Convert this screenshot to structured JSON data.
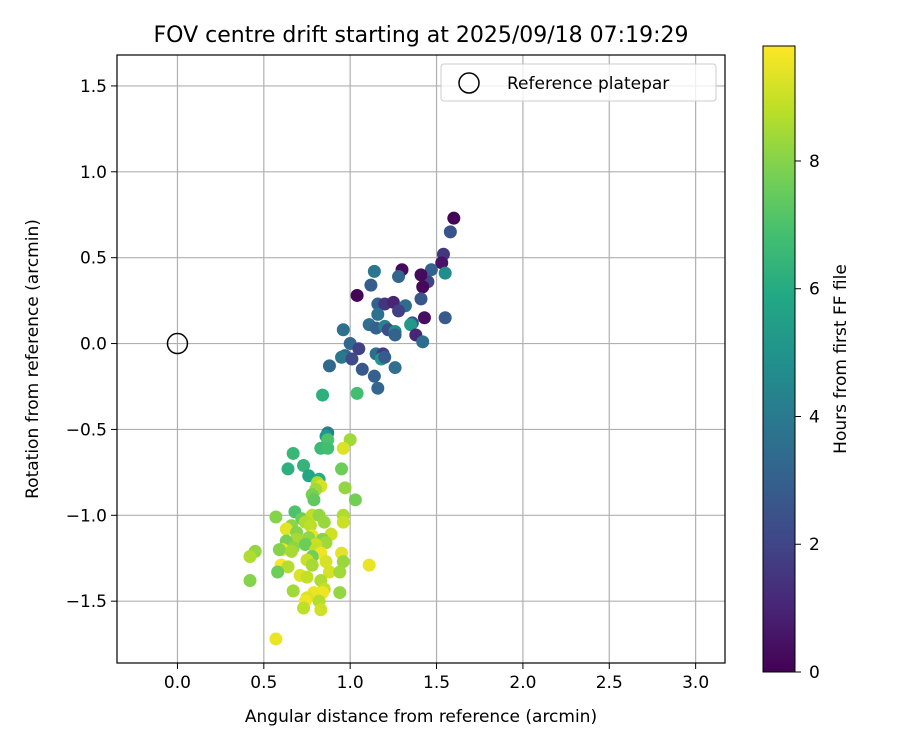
{
  "chart_data": {
    "type": "scatter",
    "title": "FOV centre drift starting at 2025/09/18 07:19:29",
    "xlabel": "Angular distance from reference (arcmin)",
    "ylabel": "Rotation from reference (arcmin)",
    "xlim": [
      -0.35,
      3.17
    ],
    "ylim": [
      -1.86,
      1.68
    ],
    "x_ticks": [
      0.0,
      0.5,
      1.0,
      1.5,
      2.0,
      2.5,
      3.0
    ],
    "y_ticks": [
      -1.5,
      -1.0,
      -0.5,
      0.0,
      0.5,
      1.0,
      1.5
    ],
    "grid": true,
    "legend": {
      "position": "top-right",
      "entries": [
        "Reference platepar"
      ]
    },
    "reference_point": {
      "x": 0.0,
      "y": 0.0
    },
    "colorbar": {
      "label": "Hours from first FF file",
      "range": [
        0,
        9.8
      ],
      "ticks": [
        0,
        2,
        4,
        6,
        8
      ],
      "colormap": "viridis"
    },
    "points": [
      {
        "x": 1.6,
        "y": 0.73,
        "c": 0.1
      },
      {
        "x": 1.58,
        "y": 0.65,
        "c": 2.5
      },
      {
        "x": 1.54,
        "y": 0.52,
        "c": 1.5
      },
      {
        "x": 1.53,
        "y": 0.47,
        "c": 0.5
      },
      {
        "x": 1.55,
        "y": 0.41,
        "c": 4.8
      },
      {
        "x": 1.47,
        "y": 0.43,
        "c": 3.0
      },
      {
        "x": 1.45,
        "y": 0.36,
        "c": 2.0
      },
      {
        "x": 1.41,
        "y": 0.4,
        "c": 0.3
      },
      {
        "x": 1.42,
        "y": 0.33,
        "c": 0.2
      },
      {
        "x": 1.41,
        "y": 0.26,
        "c": 2.6
      },
      {
        "x": 1.3,
        "y": 0.43,
        "c": 0.3
      },
      {
        "x": 1.28,
        "y": 0.39,
        "c": 3.2
      },
      {
        "x": 1.14,
        "y": 0.42,
        "c": 3.8
      },
      {
        "x": 1.12,
        "y": 0.34,
        "c": 2.9
      },
      {
        "x": 1.04,
        "y": 0.28,
        "c": 0.1
      },
      {
        "x": 1.16,
        "y": 0.23,
        "c": 3.1
      },
      {
        "x": 1.2,
        "y": 0.23,
        "c": 1.5
      },
      {
        "x": 1.25,
        "y": 0.24,
        "c": 1.0
      },
      {
        "x": 1.32,
        "y": 0.22,
        "c": 3.5
      },
      {
        "x": 1.28,
        "y": 0.19,
        "c": 1.8
      },
      {
        "x": 1.16,
        "y": 0.17,
        "c": 3.7
      },
      {
        "x": 1.55,
        "y": 0.15,
        "c": 2.8
      },
      {
        "x": 1.43,
        "y": 0.15,
        "c": 0.4
      },
      {
        "x": 1.36,
        "y": 0.12,
        "c": 2.5
      },
      {
        "x": 1.35,
        "y": 0.11,
        "c": 5.3
      },
      {
        "x": 1.11,
        "y": 0.11,
        "c": 3.6
      },
      {
        "x": 1.15,
        "y": 0.09,
        "c": 3.0
      },
      {
        "x": 1.2,
        "y": 0.1,
        "c": 4.3
      },
      {
        "x": 1.22,
        "y": 0.08,
        "c": 2.3
      },
      {
        "x": 1.26,
        "y": 0.07,
        "c": 4.6
      },
      {
        "x": 1.26,
        "y": 0.05,
        "c": 3.1
      },
      {
        "x": 1.38,
        "y": 0.05,
        "c": 1.0
      },
      {
        "x": 0.96,
        "y": 0.08,
        "c": 3.6
      },
      {
        "x": 1.42,
        "y": 0.01,
        "c": 3.5
      },
      {
        "x": 1.0,
        "y": 0.0,
        "c": 3.3
      },
      {
        "x": 1.05,
        "y": -0.03,
        "c": 1.9
      },
      {
        "x": 0.97,
        "y": -0.07,
        "c": 3.2
      },
      {
        "x": 0.95,
        "y": -0.08,
        "c": 3.9
      },
      {
        "x": 1.01,
        "y": -0.09,
        "c": 2.2
      },
      {
        "x": 1.15,
        "y": -0.06,
        "c": 3.5
      },
      {
        "x": 1.19,
        "y": -0.06,
        "c": 1.7
      },
      {
        "x": 1.18,
        "y": -0.09,
        "c": 5.2
      },
      {
        "x": 1.2,
        "y": -0.08,
        "c": 2.8
      },
      {
        "x": 0.88,
        "y": -0.13,
        "c": 3.3
      },
      {
        "x": 1.07,
        "y": -0.15,
        "c": 2.7
      },
      {
        "x": 1.26,
        "y": -0.14,
        "c": 3.6
      },
      {
        "x": 1.14,
        "y": -0.19,
        "c": 3.0
      },
      {
        "x": 1.16,
        "y": -0.26,
        "c": 3.2
      },
      {
        "x": 0.84,
        "y": -0.3,
        "c": 6.2
      },
      {
        "x": 1.04,
        "y": -0.29,
        "c": 6.8
      },
      {
        "x": 0.87,
        "y": -0.52,
        "c": 4.2
      },
      {
        "x": 0.86,
        "y": -0.54,
        "c": 5.2
      },
      {
        "x": 0.87,
        "y": -0.56,
        "c": 7.0
      },
      {
        "x": 1.0,
        "y": -0.56,
        "c": 8.4
      },
      {
        "x": 0.96,
        "y": -0.61,
        "c": 9.3
      },
      {
        "x": 0.83,
        "y": -0.61,
        "c": 6.6
      },
      {
        "x": 0.87,
        "y": -0.61,
        "c": 6.8
      },
      {
        "x": 0.67,
        "y": -0.64,
        "c": 6.5
      },
      {
        "x": 0.64,
        "y": -0.73,
        "c": 6.2
      },
      {
        "x": 0.73,
        "y": -0.71,
        "c": 6.4
      },
      {
        "x": 0.76,
        "y": -0.77,
        "c": 5.8
      },
      {
        "x": 0.95,
        "y": -0.73,
        "c": 7.6
      },
      {
        "x": 0.82,
        "y": -0.79,
        "c": 6.0
      },
      {
        "x": 0.81,
        "y": -0.81,
        "c": 8.6
      },
      {
        "x": 0.83,
        "y": -0.83,
        "c": 9.2
      },
      {
        "x": 0.97,
        "y": -0.84,
        "c": 8.2
      },
      {
        "x": 0.8,
        "y": -0.85,
        "c": 8.4
      },
      {
        "x": 0.78,
        "y": -0.88,
        "c": 7.8
      },
      {
        "x": 0.79,
        "y": -0.91,
        "c": 7.4
      },
      {
        "x": 1.03,
        "y": -0.91,
        "c": 7.7
      },
      {
        "x": 0.68,
        "y": -0.98,
        "c": 7.0
      },
      {
        "x": 0.57,
        "y": -1.01,
        "c": 8.0
      },
      {
        "x": 0.72,
        "y": -1.02,
        "c": 7.6
      },
      {
        "x": 0.78,
        "y": -1.0,
        "c": 8.8
      },
      {
        "x": 0.82,
        "y": -1.0,
        "c": 8.2
      },
      {
        "x": 0.96,
        "y": -1.0,
        "c": 8.6
      },
      {
        "x": 0.96,
        "y": -1.04,
        "c": 9.0
      },
      {
        "x": 0.85,
        "y": -1.04,
        "c": 8.3
      },
      {
        "x": 0.74,
        "y": -1.04,
        "c": 8.6
      },
      {
        "x": 0.77,
        "y": -1.06,
        "c": 8.8
      },
      {
        "x": 0.66,
        "y": -1.06,
        "c": 8.1
      },
      {
        "x": 0.63,
        "y": -1.08,
        "c": 9.4
      },
      {
        "x": 0.69,
        "y": -1.1,
        "c": 8.0
      },
      {
        "x": 0.78,
        "y": -1.12,
        "c": 9.5
      },
      {
        "x": 0.89,
        "y": -1.11,
        "c": 9.1
      },
      {
        "x": 0.84,
        "y": -1.14,
        "c": 8.0
      },
      {
        "x": 0.76,
        "y": -1.13,
        "c": 8.2
      },
      {
        "x": 0.69,
        "y": -1.14,
        "c": 8.5
      },
      {
        "x": 0.63,
        "y": -1.15,
        "c": 7.8
      },
      {
        "x": 0.86,
        "y": -1.16,
        "c": 8.4
      },
      {
        "x": 0.8,
        "y": -1.17,
        "c": 9.0
      },
      {
        "x": 0.74,
        "y": -1.17,
        "c": 7.6
      },
      {
        "x": 0.67,
        "y": -1.19,
        "c": 8.1
      },
      {
        "x": 0.61,
        "y": -1.2,
        "c": 9.6
      },
      {
        "x": 0.59,
        "y": -1.2,
        "c": 8.0
      },
      {
        "x": 0.66,
        "y": -1.21,
        "c": 8.5
      },
      {
        "x": 0.8,
        "y": -1.2,
        "c": 8.9
      },
      {
        "x": 0.83,
        "y": -1.22,
        "c": 9.6
      },
      {
        "x": 0.78,
        "y": -1.24,
        "c": 7.7
      },
      {
        "x": 0.95,
        "y": -1.22,
        "c": 9.4
      },
      {
        "x": 0.45,
        "y": -1.21,
        "c": 8.2
      },
      {
        "x": 0.42,
        "y": -1.24,
        "c": 8.6
      },
      {
        "x": 0.75,
        "y": -1.26,
        "c": 9.0
      },
      {
        "x": 0.86,
        "y": -1.27,
        "c": 9.2
      },
      {
        "x": 0.96,
        "y": -1.27,
        "c": 8.3
      },
      {
        "x": 0.78,
        "y": -1.29,
        "c": 8.5
      },
      {
        "x": 0.6,
        "y": -1.29,
        "c": 9.7
      },
      {
        "x": 1.11,
        "y": -1.29,
        "c": 9.5
      },
      {
        "x": 0.64,
        "y": -1.3,
        "c": 8.7
      },
      {
        "x": 0.58,
        "y": -1.33,
        "c": 7.6
      },
      {
        "x": 0.88,
        "y": -1.33,
        "c": 9.2
      },
      {
        "x": 0.94,
        "y": -1.33,
        "c": 8.4
      },
      {
        "x": 0.71,
        "y": -1.35,
        "c": 9.3
      },
      {
        "x": 0.75,
        "y": -1.36,
        "c": 8.9
      },
      {
        "x": 0.42,
        "y": -1.38,
        "c": 8.0
      },
      {
        "x": 0.83,
        "y": -1.38,
        "c": 8.6
      },
      {
        "x": 0.67,
        "y": -1.44,
        "c": 8.4
      },
      {
        "x": 0.85,
        "y": -1.43,
        "c": 8.9
      },
      {
        "x": 0.84,
        "y": -1.45,
        "c": 9.6
      },
      {
        "x": 0.94,
        "y": -1.45,
        "c": 8.2
      },
      {
        "x": 0.79,
        "y": -1.45,
        "c": 9.5
      },
      {
        "x": 0.75,
        "y": -1.48,
        "c": 9.3
      },
      {
        "x": 0.74,
        "y": -1.5,
        "c": 9.6
      },
      {
        "x": 0.82,
        "y": -1.5,
        "c": 8.7
      },
      {
        "x": 0.73,
        "y": -1.54,
        "c": 8.8
      },
      {
        "x": 0.83,
        "y": -1.55,
        "c": 9.1
      },
      {
        "x": 0.57,
        "y": -1.72,
        "c": 9.5
      }
    ]
  }
}
